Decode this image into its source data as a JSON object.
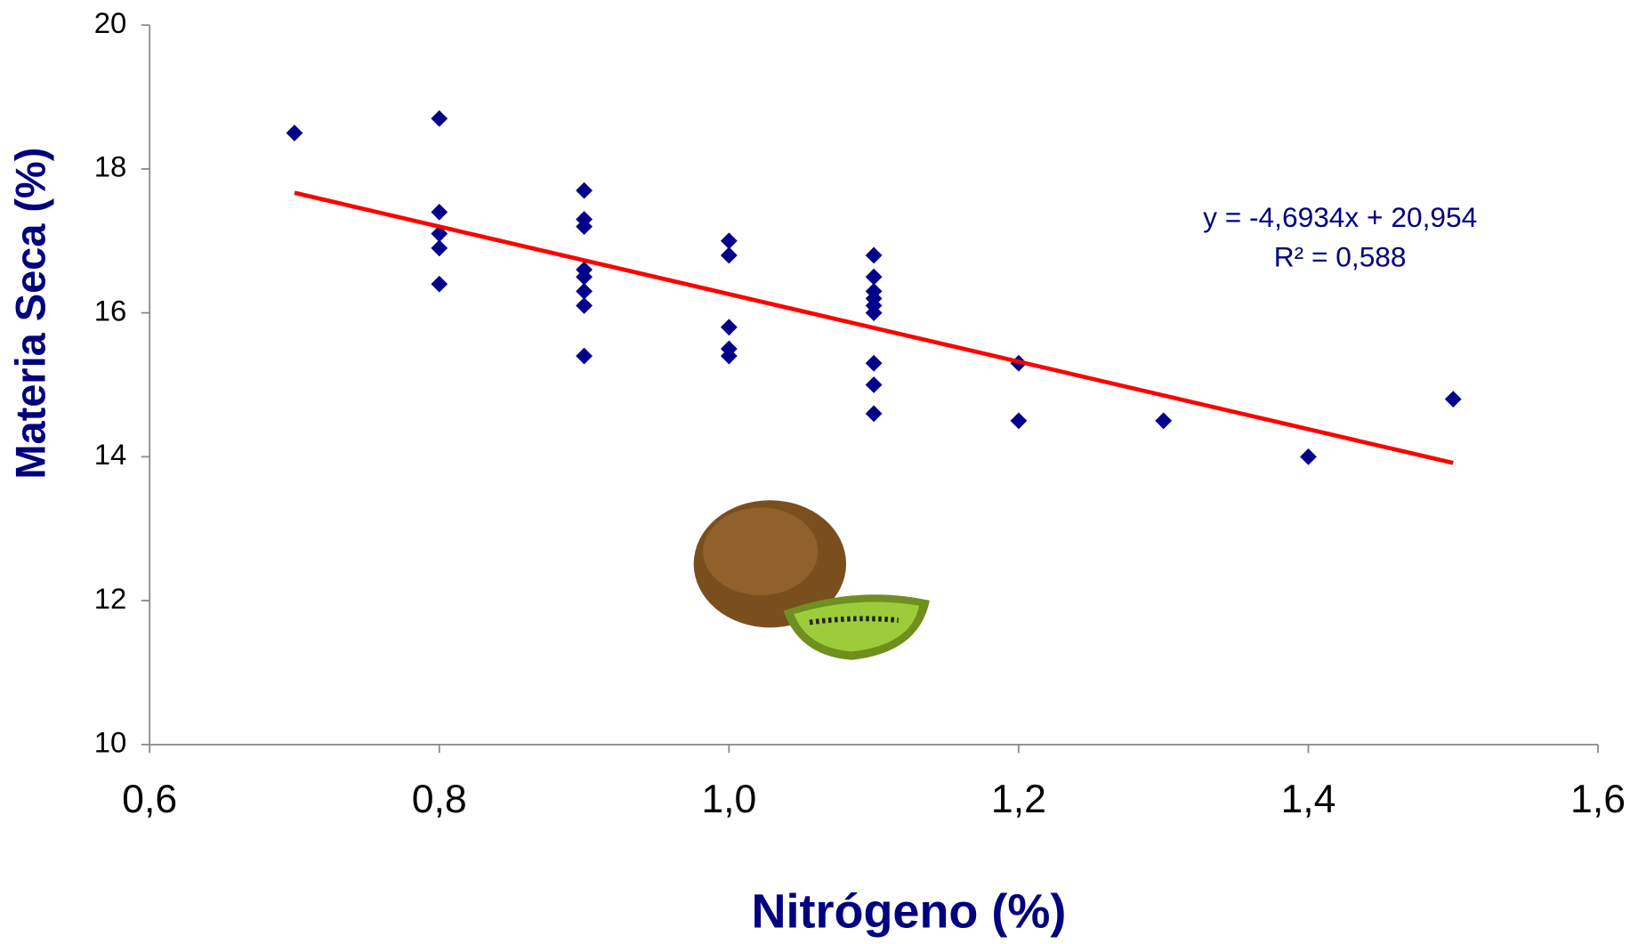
{
  "chart_data": {
    "type": "scatter",
    "xlabel": "Nitrógeno (%)",
    "ylabel": "Materia Seca (%)",
    "series": [
      {
        "name": "Materia Seca",
        "color": "#00008b",
        "x": [
          0.7,
          0.8,
          0.8,
          0.8,
          0.8,
          0.8,
          0.9,
          0.9,
          0.9,
          0.9,
          0.9,
          0.9,
          0.9,
          0.9,
          1.0,
          1.0,
          1.0,
          1.0,
          1.0,
          1.1,
          1.1,
          1.1,
          1.1,
          1.1,
          1.1,
          1.1,
          1.1,
          1.1,
          1.2,
          1.2,
          1.3,
          1.4,
          1.5
        ],
        "values": [
          18.5,
          18.7,
          17.4,
          17.1,
          16.9,
          16.4,
          17.7,
          17.3,
          17.2,
          16.6,
          16.5,
          16.3,
          16.1,
          15.4,
          17.0,
          16.8,
          15.8,
          15.5,
          15.4,
          16.8,
          16.5,
          16.3,
          16.2,
          16.1,
          16.0,
          15.3,
          15.0,
          14.6,
          15.3,
          14.5,
          14.5,
          14.0,
          14.8
        ]
      }
    ],
    "trendline": {
      "slope": -4.6934,
      "intercept": 20.954,
      "x_range": [
        0.7,
        1.5
      ],
      "color": "#ff0000",
      "equation": "y = -4,6934x + 20,954",
      "r2": "R² = 0,588"
    },
    "xlim": [
      0.6,
      1.6
    ],
    "xticks": [
      {
        "value": 0.6,
        "label": "0,6"
      },
      {
        "value": 0.8,
        "label": "0,8"
      },
      {
        "value": 1.0,
        "label": "1,0"
      },
      {
        "value": 1.2,
        "label": "1,2"
      },
      {
        "value": 1.4,
        "label": "1,4"
      },
      {
        "value": 1.6,
        "label": "1,6"
      }
    ],
    "ylim": [
      10,
      20
    ],
    "yticks": [
      10,
      12,
      14,
      16,
      18,
      20
    ],
    "grid": false
  }
}
